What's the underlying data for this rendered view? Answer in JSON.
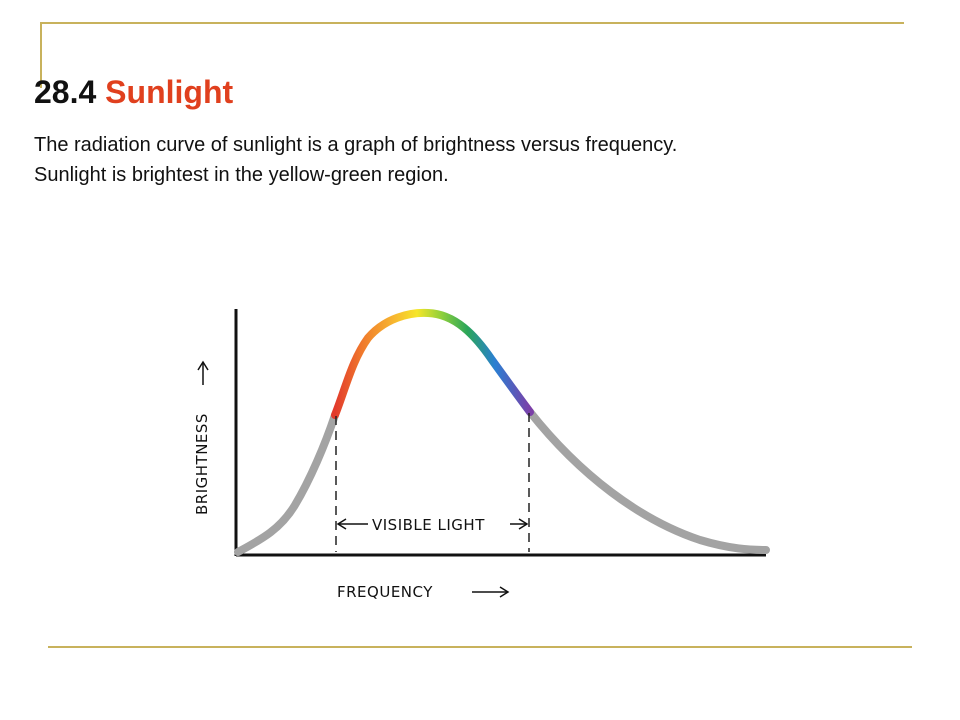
{
  "slide": {
    "number": "28.4",
    "heading": "Sunlight",
    "body": "The radiation curve of sunlight is a graph of brightness versus frequency. Sunlight is brightest in the yellow-green region."
  },
  "diagram": {
    "y_label": "BRIGHTNESS",
    "x_label": "FREQUENCY",
    "band_label": "VISIBLE LIGHT",
    "colors": {
      "curve_outside_visible": "#a3a3a3",
      "spectrum": [
        "#e23a2c",
        "#f07a2c",
        "#f7b630",
        "#f6e62a",
        "#8ccf3c",
        "#2aa55a",
        "#2a7fd2",
        "#7b3fa8"
      ],
      "frame": "#c8b25c",
      "accent": "#e0401e"
    }
  }
}
